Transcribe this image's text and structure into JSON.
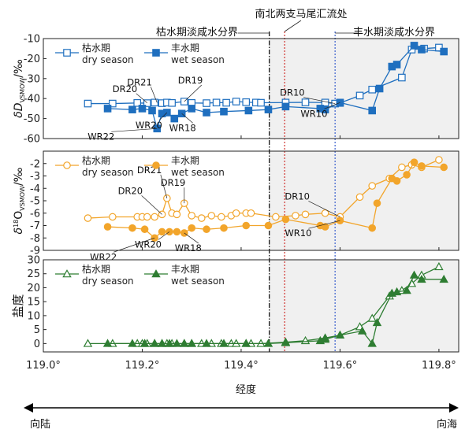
{
  "chart_data": {
    "type": "line",
    "x_axis": {
      "label": "经度",
      "ticks": [
        "119.0°",
        "119.2°",
        "119.4°",
        "119.6°",
        "119.8°"
      ],
      "tick_values": [
        119.0,
        119.2,
        119.4,
        119.6,
        119.8
      ],
      "range": [
        119.0,
        119.84
      ]
    },
    "direction": {
      "left": "向陆",
      "right": "向海"
    },
    "vertical_lines": [
      {
        "label": "枯水期淡咸水分界",
        "x": 119.457,
        "color": "#000000",
        "style": "dash-dot"
      },
      {
        "label": "南北两支马尾汇流处",
        "x": 119.488,
        "color": "#d0312d",
        "style": "dotted"
      },
      {
        "label": "丰水期淡咸水分界",
        "x": 119.59,
        "color": "#3a5fcd",
        "style": "dotted"
      }
    ],
    "shaded_region": {
      "from": 119.457,
      "to": 119.84,
      "color": "#f0f0f0"
    },
    "panels": [
      {
        "id": "dD",
        "ylabel_main": "δD",
        "ylabel_sub": "VSMOW",
        "ylabel_unit": "/‰",
        "ylim": [
          -60,
          -10
        ],
        "yticks": [
          -10,
          -20,
          -30,
          -40,
          -50,
          -60
        ],
        "color": "#1f6fbf",
        "legend": {
          "dry_cn": "枯水期",
          "dry_en": "dry season",
          "wet_cn": "丰水期",
          "wet_en": "wet season"
        },
        "series": [
          {
            "name": "dry season",
            "marker": "open-square",
            "points": [
              [
                119.09,
                -42.5
              ],
              [
                119.14,
                -42.5
              ],
              [
                119.19,
                -42.2
              ],
              [
                119.21,
                -42.3
              ],
              [
                119.225,
                -42.0
              ],
              [
                119.24,
                -42.3
              ],
              [
                119.25,
                -42.0
              ],
              [
                119.26,
                -42.2
              ],
              [
                119.285,
                -41.5
              ],
              [
                119.3,
                -42.2
              ],
              [
                119.33,
                -42.3
              ],
              [
                119.35,
                -42.0
              ],
              [
                119.37,
                -42.1
              ],
              [
                119.39,
                -41.5
              ],
              [
                119.41,
                -41.8
              ],
              [
                119.43,
                -42.0
              ],
              [
                119.44,
                -42.1
              ],
              [
                119.49,
                -42.0
              ],
              [
                119.53,
                -41.9
              ],
              [
                119.57,
                -42.0
              ],
              [
                119.59,
                -42.5
              ],
              [
                119.6,
                -42.2
              ],
              [
                119.64,
                -38.5
              ],
              [
                119.665,
                -35.5
              ],
              [
                119.725,
                -29.5
              ],
              [
                119.745,
                -15.5
              ],
              [
                119.77,
                -15.0
              ],
              [
                119.8,
                -14.5
              ]
            ]
          },
          {
            "name": "wet season",
            "marker": "filled-square",
            "points": [
              [
                119.13,
                -45.0
              ],
              [
                119.18,
                -45.5
              ],
              [
                119.2,
                -45.0
              ],
              [
                119.22,
                -46.0
              ],
              [
                119.23,
                -55.0
              ],
              [
                119.24,
                -47.5
              ],
              [
                119.25,
                -47.0
              ],
              [
                119.265,
                -50.0
              ],
              [
                119.28,
                -47.5
              ],
              [
                119.3,
                -45.0
              ],
              [
                119.33,
                -47.0
              ],
              [
                119.365,
                -46.5
              ],
              [
                119.415,
                -46.0
              ],
              [
                119.455,
                -45.5
              ],
              [
                119.49,
                -44.0
              ],
              [
                119.56,
                -45.0
              ],
              [
                119.57,
                -45.5
              ],
              [
                119.6,
                -42.0
              ],
              [
                119.665,
                -46.0
              ],
              [
                119.68,
                -35.0
              ],
              [
                119.705,
                -24.0
              ],
              [
                119.715,
                -23.0
              ],
              [
                119.75,
                -13.5
              ],
              [
                119.765,
                -15.5
              ],
              [
                119.81,
                -16.5
              ]
            ]
          }
        ],
        "annotations": [
          {
            "text": "DR20",
            "x": 119.21,
            "y": -42.2
          },
          {
            "text": "DR21",
            "x": 119.23,
            "y": -42.0
          },
          {
            "text": "DR19",
            "x": 119.285,
            "y": -41.5
          },
          {
            "text": "WR22",
            "x": 119.23,
            "y": -55.0
          },
          {
            "text": "WR20",
            "x": 119.25,
            "y": -47.0
          },
          {
            "text": "WR18",
            "x": 119.28,
            "y": -47.5
          },
          {
            "text": "DR10",
            "x": 119.59,
            "y": -42.5
          },
          {
            "text": "WR10",
            "x": 119.6,
            "y": -42.0
          }
        ]
      },
      {
        "id": "d18O",
        "ylabel_main": "δ",
        "ylabel_sup": "18",
        "ylabel_rest": "O",
        "ylabel_sub": "VSMOW",
        "ylabel_unit": "/‰",
        "ylim": [
          -9,
          -1
        ],
        "yticks": [
          -2,
          -3,
          -4,
          -5,
          -6,
          -7,
          -8,
          -9
        ],
        "color": "#f2a52b",
        "legend": {
          "dry_cn": "枯水期",
          "dry_en": "dry season",
          "wet_cn": "丰水期",
          "wet_en": "wet season"
        },
        "series": [
          {
            "name": "dry season",
            "marker": "open-circle",
            "points": [
              [
                119.09,
                -6.4
              ],
              [
                119.14,
                -6.3
              ],
              [
                119.19,
                -6.3
              ],
              [
                119.2,
                -6.3
              ],
              [
                119.21,
                -6.3
              ],
              [
                119.225,
                -6.3
              ],
              [
                119.24,
                -6.1
              ],
              [
                119.25,
                -4.8
              ],
              [
                119.26,
                -6.0
              ],
              [
                119.27,
                -6.1
              ],
              [
                119.285,
                -5.2
              ],
              [
                119.3,
                -6.2
              ],
              [
                119.32,
                -6.4
              ],
              [
                119.34,
                -6.2
              ],
              [
                119.36,
                -6.3
              ],
              [
                119.38,
                -6.2
              ],
              [
                119.39,
                -6.0
              ],
              [
                119.41,
                -6.0
              ],
              [
                119.42,
                -6.0
              ],
              [
                119.47,
                -6.3
              ],
              [
                119.51,
                -6.2
              ],
              [
                119.53,
                -6.1
              ],
              [
                119.57,
                -6.0
              ],
              [
                119.6,
                -6.3
              ],
              [
                119.64,
                -4.7
              ],
              [
                119.665,
                -3.8
              ],
              [
                119.7,
                -3.2
              ],
              [
                119.725,
                -2.3
              ],
              [
                119.745,
                -2.1
              ],
              [
                119.765,
                -2.3
              ],
              [
                119.8,
                -1.7
              ]
            ]
          },
          {
            "name": "wet season",
            "marker": "filled-circle",
            "points": [
              [
                119.13,
                -7.1
              ],
              [
                119.18,
                -7.2
              ],
              [
                119.205,
                -7.3
              ],
              [
                119.225,
                -8.0
              ],
              [
                119.24,
                -7.5
              ],
              [
                119.255,
                -7.5
              ],
              [
                119.27,
                -7.5
              ],
              [
                119.285,
                -7.6
              ],
              [
                119.3,
                -7.2
              ],
              [
                119.33,
                -7.3
              ],
              [
                119.365,
                -7.2
              ],
              [
                119.41,
                -7.0
              ],
              [
                119.455,
                -7.0
              ],
              [
                119.49,
                -6.5
              ],
              [
                119.56,
                -7.0
              ],
              [
                119.57,
                -7.1
              ],
              [
                119.6,
                -6.6
              ],
              [
                119.665,
                -7.2
              ],
              [
                119.675,
                -5.2
              ],
              [
                119.705,
                -3.2
              ],
              [
                119.715,
                -3.4
              ],
              [
                119.735,
                -2.9
              ],
              [
                119.75,
                -1.9
              ],
              [
                119.765,
                -2.2
              ],
              [
                119.81,
                -2.3
              ]
            ]
          }
        ],
        "annotations": [
          {
            "text": "DR21",
            "x": 119.25,
            "y": -4.8
          },
          {
            "text": "DR20",
            "x": 119.24,
            "y": -6.1
          },
          {
            "text": "DR19",
            "x": 119.285,
            "y": -5.2
          },
          {
            "text": "WR22",
            "x": 119.225,
            "y": -8.0
          },
          {
            "text": "WR20",
            "x": 119.255,
            "y": -7.5
          },
          {
            "text": "WR18",
            "x": 119.285,
            "y": -7.6
          },
          {
            "text": "DR10",
            "x": 119.6,
            "y": -6.3
          },
          {
            "text": "WR10",
            "x": 119.6,
            "y": -6.6
          }
        ]
      },
      {
        "id": "salinity",
        "ylabel_main": "盐度",
        "ylim": [
          -3,
          30
        ],
        "yticks": [
          0,
          5,
          10,
          15,
          20,
          25,
          30
        ],
        "color": "#2e7d32",
        "legend": {
          "dry_cn": "枯水期",
          "dry_en": "dry season",
          "wet_cn": "丰水期",
          "wet_en": "wet season"
        },
        "series": [
          {
            "name": "dry season",
            "marker": "open-triangle",
            "points": [
              [
                119.09,
                0.0
              ],
              [
                119.14,
                0.0
              ],
              [
                119.19,
                0.0
              ],
              [
                119.2,
                0.0
              ],
              [
                119.21,
                0.0
              ],
              [
                119.225,
                0.0
              ],
              [
                119.24,
                0.0
              ],
              [
                119.25,
                0.0
              ],
              [
                119.26,
                0.0
              ],
              [
                119.285,
                0.0
              ],
              [
                119.3,
                0.0
              ],
              [
                119.32,
                0.0
              ],
              [
                119.34,
                0.0
              ],
              [
                119.36,
                0.0
              ],
              [
                119.38,
                0.0
              ],
              [
                119.39,
                0.0
              ],
              [
                119.41,
                0.0
              ],
              [
                119.42,
                0.0
              ],
              [
                119.44,
                0.0
              ],
              [
                119.49,
                0.5
              ],
              [
                119.53,
                1.0
              ],
              [
                119.57,
                2.0
              ],
              [
                119.6,
                3.0
              ],
              [
                119.64,
                6.0
              ],
              [
                119.665,
                9.0
              ],
              [
                119.7,
                17.0
              ],
              [
                119.725,
                19.0
              ],
              [
                119.745,
                21.5
              ],
              [
                119.765,
                24.5
              ],
              [
                119.8,
                27.5
              ]
            ]
          },
          {
            "name": "wet season",
            "marker": "filled-triangle",
            "points": [
              [
                119.13,
                0.0
              ],
              [
                119.18,
                0.0
              ],
              [
                119.205,
                0.0
              ],
              [
                119.225,
                0.0
              ],
              [
                119.24,
                0.0
              ],
              [
                119.255,
                0.0
              ],
              [
                119.27,
                0.0
              ],
              [
                119.285,
                0.0
              ],
              [
                119.3,
                0.0
              ],
              [
                119.33,
                0.0
              ],
              [
                119.365,
                0.0
              ],
              [
                119.41,
                0.0
              ],
              [
                119.455,
                0.0
              ],
              [
                119.49,
                0.3
              ],
              [
                119.56,
                1.0
              ],
              [
                119.57,
                1.5
              ],
              [
                119.6,
                3.0
              ],
              [
                119.645,
                4.5
              ],
              [
                119.665,
                0.0
              ],
              [
                119.675,
                7.5
              ],
              [
                119.705,
                18.0
              ],
              [
                119.715,
                18.5
              ],
              [
                119.735,
                19.0
              ],
              [
                119.75,
                24.5
              ],
              [
                119.765,
                23.0
              ],
              [
                119.81,
                23.0
              ]
            ]
          }
        ],
        "annotations": []
      }
    ]
  }
}
